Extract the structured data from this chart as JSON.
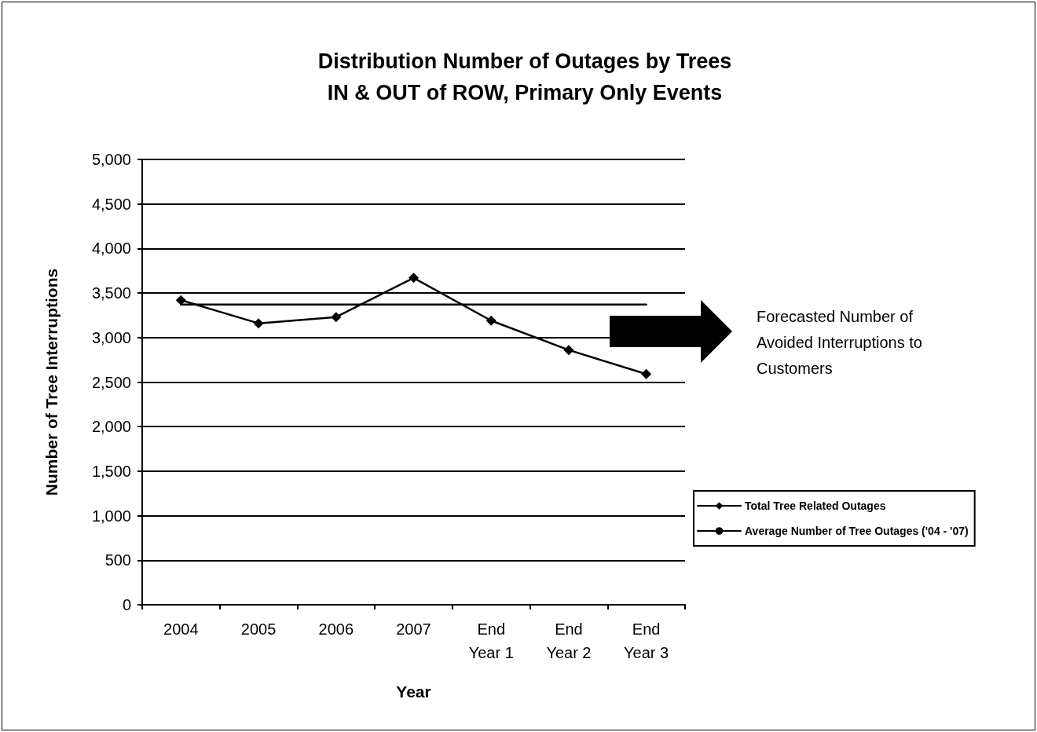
{
  "chart_data": {
    "type": "line",
    "title": "Distribution Number of Outages by Trees\nIN & OUT of ROW, Primary Only Events",
    "xlabel": "Year",
    "ylabel": "Number of Tree Interruptions",
    "categories": [
      "2004",
      "2005",
      "2006",
      "2007",
      "End\nYear 1",
      "End\nYear 2",
      "End\nYear 3"
    ],
    "series": [
      {
        "name": "Total Tree Related Outages",
        "color": "#000000",
        "values": [
          3420,
          3160,
          3230,
          3670,
          3190,
          2860,
          2590
        ],
        "marker": "diamond"
      },
      {
        "name": "Average Number of Tree Outages ('04 - '07)",
        "color": "#000000",
        "values": [
          3370,
          3370,
          3370,
          3370,
          3370,
          3370,
          3370
        ],
        "marker": "none"
      }
    ],
    "ylim": [
      0,
      5000
    ],
    "yticks": [
      {
        "value": 0,
        "label": "0"
      },
      {
        "value": 500,
        "label": "500"
      },
      {
        "value": 1000,
        "label": "1,000"
      },
      {
        "value": 1500,
        "label": "1,500"
      },
      {
        "value": 2000,
        "label": "2,000"
      },
      {
        "value": 2500,
        "label": "2,500"
      },
      {
        "value": 3000,
        "label": "3,000"
      },
      {
        "value": 3500,
        "label": "3,500"
      },
      {
        "value": 4000,
        "label": "4,000"
      },
      {
        "value": 4500,
        "label": "4,500"
      },
      {
        "value": 5000,
        "label": "5,000"
      }
    ],
    "grid": "y",
    "legend": "right",
    "annotations": [
      "Forecasted Number of\nAvoided Interruptions to\nCustomers"
    ]
  }
}
